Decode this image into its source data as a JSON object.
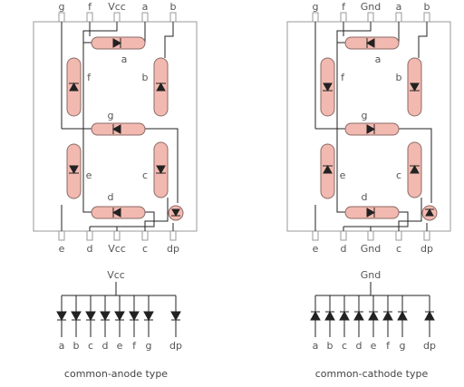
{
  "anode": {
    "top_pins": [
      "g",
      "f",
      "Vcc",
      "a",
      "b"
    ],
    "bottom_pins": [
      "e",
      "d",
      "Vcc",
      "c",
      "dp"
    ],
    "segments": {
      "a": "a",
      "b": "b",
      "c": "c",
      "d": "d",
      "e": "e",
      "f": "f",
      "g": "g"
    },
    "bus_label": "Vcc",
    "schematic_labels": [
      "a",
      "b",
      "c",
      "d",
      "e",
      "f",
      "g",
      "dp"
    ],
    "caption": "common-anode type"
  },
  "cathode": {
    "top_pins": [
      "g",
      "f",
      "Gnd",
      "a",
      "b"
    ],
    "bottom_pins": [
      "e",
      "d",
      "Gnd",
      "c",
      "dp"
    ],
    "segments": {
      "a": "a",
      "b": "b",
      "c": "c",
      "d": "d",
      "e": "e",
      "f": "f",
      "g": "g"
    },
    "bus_label": "Gnd",
    "schematic_labels": [
      "a",
      "b",
      "c",
      "d",
      "e",
      "f",
      "g",
      "dp"
    ],
    "caption": "common-cathode type"
  },
  "colors": {
    "segment_fill": "#f2b9b0",
    "wire": "#222222",
    "outline": "#9a9a9a"
  }
}
